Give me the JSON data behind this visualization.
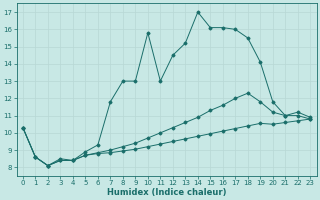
{
  "xlabel": "Humidex (Indice chaleur)",
  "bg_color": "#c8e8e5",
  "line_color": "#1a6e6a",
  "grid_color": "#b8d8d5",
  "xlim": [
    -0.5,
    23.5
  ],
  "ylim": [
    7.5,
    17.5
  ],
  "xticks": [
    0,
    1,
    2,
    3,
    4,
    5,
    6,
    7,
    8,
    9,
    10,
    11,
    12,
    13,
    14,
    15,
    16,
    17,
    18,
    19,
    20,
    21,
    22,
    23
  ],
  "yticks": [
    8,
    9,
    10,
    11,
    12,
    13,
    14,
    15,
    16,
    17
  ],
  "line_top": [
    10.3,
    8.6,
    8.1,
    8.5,
    8.4,
    8.9,
    9.3,
    11.8,
    13.0,
    13.0,
    15.8,
    13.0,
    14.5,
    15.2,
    17.0,
    16.1,
    16.1,
    16.0,
    15.5,
    14.1,
    11.8,
    11.0,
    11.2,
    10.9
  ],
  "line_mid": [
    10.3,
    8.6,
    8.1,
    8.4,
    8.4,
    8.7,
    8.85,
    9.0,
    9.2,
    9.4,
    9.7,
    10.0,
    10.3,
    10.6,
    10.9,
    11.3,
    11.6,
    12.0,
    12.3,
    11.8,
    11.2,
    11.0,
    11.0,
    10.8
  ],
  "line_bot": [
    10.3,
    8.6,
    8.1,
    8.4,
    8.4,
    8.7,
    8.8,
    8.85,
    8.95,
    9.05,
    9.2,
    9.35,
    9.5,
    9.65,
    9.8,
    9.95,
    10.1,
    10.25,
    10.4,
    10.55,
    10.5,
    10.6,
    10.7,
    10.8
  ]
}
